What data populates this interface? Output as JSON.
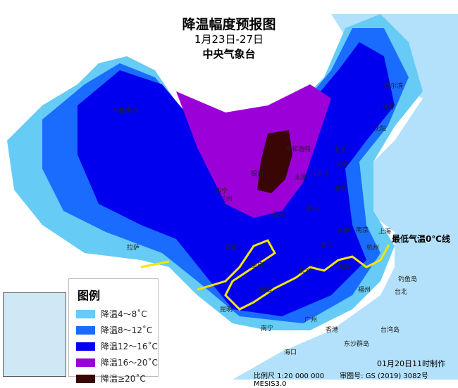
{
  "title": "降温幅度预报图",
  "date_range": "1月23日-27日",
  "agency": "中央气象台",
  "legend": {
    "title": "图例",
    "items": [
      {
        "label": "降温4～8˚C",
        "color": "#66ccf5"
      },
      {
        "label": "降温8～12˚C",
        "color": "#1a6cff"
      },
      {
        "label": "降温12～16˚C",
        "color": "#0000ee"
      },
      {
        "label": "降温16～20˚C",
        "color": "#9b00d9"
      },
      {
        "label": "降温≥20˚C",
        "color": "#3a0505"
      }
    ]
  },
  "annotation": "最低气温0℃线",
  "frost_line_color": "#f2e600",
  "made_time": "01月20日11时制作",
  "scale": "比例尺 1:20 000 000",
  "map_review_no": "审图号: GS (2019) 3082号 MESIS3.0",
  "cities": [
    "北京",
    "哈尔滨",
    "长春",
    "沈阳",
    "天津",
    "石家庄",
    "太原",
    "济南",
    "郑州",
    "西安",
    "兰州",
    "西宁",
    "银川",
    "呼和浩特",
    "乌鲁木齐",
    "拉萨",
    "成都",
    "重庆",
    "贵阳",
    "昆明",
    "南宁",
    "广州",
    "香港",
    "海口",
    "长沙",
    "武汉",
    "合肥",
    "南京",
    "上海",
    "杭州",
    "南昌",
    "福州",
    "台北",
    "钓鱼岛",
    "台湾岛",
    "东沙群岛"
  ]
}
